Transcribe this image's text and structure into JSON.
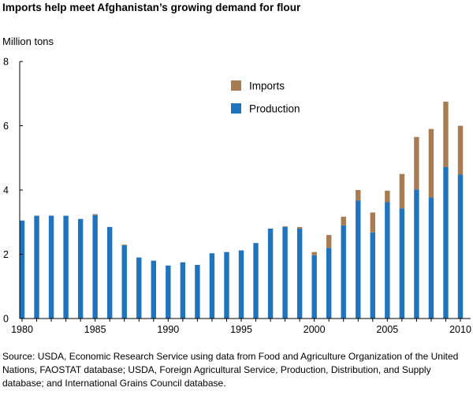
{
  "page": {
    "title": "Imports help meet Afghanistan’s growing demand for flour",
    "source_note": "Source:  USDA, Economic Research Service using data from Food and Agriculture Organization of the United Nations, FAOSTAT database; USDA, Foreign Agricultural Service, Production, Distribution, and Supply database; and International Grains Council database."
  },
  "chart_data": {
    "type": "bar",
    "stacked": true,
    "title": "Imports help meet Afghanistan’s growing demand for flour",
    "ylabel": "Million tons",
    "xlabel": "",
    "ylim": [
      0,
      8
    ],
    "y_ticks": [
      0,
      2,
      4,
      6,
      8
    ],
    "x_ticks": [
      1980,
      1985,
      1990,
      1995,
      2000,
      2005,
      2010
    ],
    "grid": false,
    "legend_position": "top-center",
    "categories": [
      1980,
      1981,
      1982,
      1983,
      1984,
      1985,
      1986,
      1987,
      1988,
      1989,
      1990,
      1991,
      1992,
      1993,
      1994,
      1995,
      1996,
      1997,
      1998,
      1999,
      2000,
      2001,
      2002,
      2003,
      2004,
      2005,
      2006,
      2007,
      2008,
      2009,
      2010
    ],
    "series": [
      {
        "name": "Production",
        "color": "#1f74bd",
        "values": [
          3.05,
          3.2,
          3.2,
          3.2,
          3.1,
          3.22,
          2.85,
          2.28,
          1.9,
          1.8,
          1.65,
          1.75,
          1.67,
          2.03,
          2.07,
          2.12,
          2.35,
          2.8,
          2.85,
          2.8,
          1.97,
          2.2,
          2.9,
          3.67,
          2.68,
          3.62,
          3.43,
          4.02,
          3.77,
          4.72,
          4.48
        ]
      },
      {
        "name": "Imports",
        "color": "#a87c52",
        "values": [
          0,
          0,
          0,
          0,
          0,
          0.03,
          0,
          0.02,
          0,
          0,
          0,
          0,
          0,
          0,
          0,
          0,
          0,
          0,
          0.02,
          0.05,
          0.1,
          0.4,
          0.27,
          0.33,
          0.62,
          0.36,
          1.07,
          1.63,
          2.13,
          2.03,
          1.52
        ]
      }
    ]
  }
}
